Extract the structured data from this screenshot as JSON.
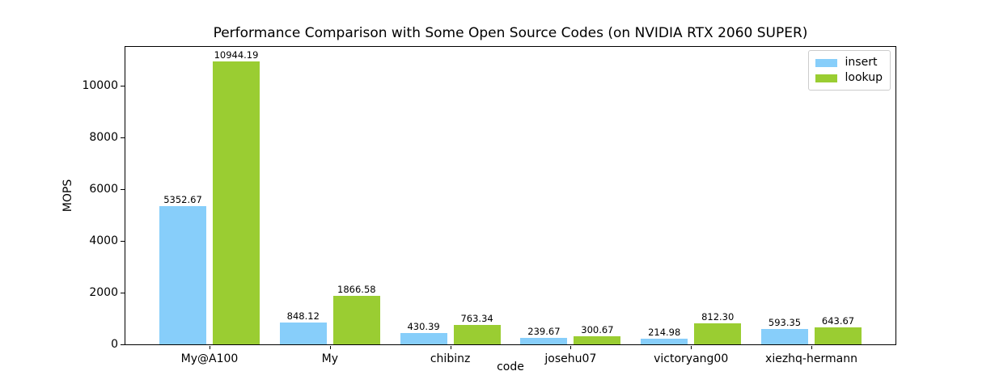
{
  "chart_data": {
    "type": "bar",
    "title": "Performance Comparison with Some Open Source Codes (on NVIDIA RTX 2060 SUPER)",
    "xlabel": "code",
    "ylabel": "MOPS",
    "categories": [
      "My@A100",
      "My",
      "chibinz",
      "josehu07",
      "victoryang00",
      "xiezhq-hermann"
    ],
    "series": [
      {
        "name": "insert",
        "color": "#87CEFA",
        "values": [
          5352.67,
          848.12,
          430.39,
          239.67,
          214.98,
          593.35
        ],
        "value_labels": [
          "5352.67",
          "848.12",
          "430.39",
          "239.67",
          "214.98",
          "593.35"
        ]
      },
      {
        "name": "lookup",
        "color": "#9ACD32",
        "values": [
          10944.19,
          1866.58,
          763.34,
          300.67,
          812.3,
          643.67
        ],
        "value_labels": [
          "10944.19",
          "1866.58",
          "763.34",
          "300.67",
          "812.30",
          "643.67"
        ]
      }
    ],
    "y_ticks": [
      0,
      2000,
      4000,
      6000,
      8000,
      10000
    ],
    "ylim": [
      0,
      11500
    ],
    "grid": false,
    "legend_position": "upper right",
    "background_color": "#ffffff",
    "spine_color": "#000000"
  }
}
